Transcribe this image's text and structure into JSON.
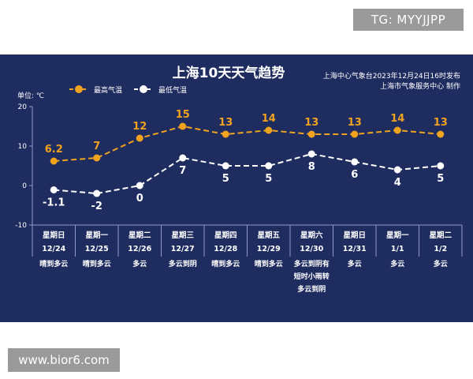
{
  "watermarks": {
    "top": "TG: MYYJJPP",
    "bottom": "www.bior6.com"
  },
  "colors": {
    "panel_bg": "#1f2c60",
    "high": "#f0a31e",
    "low": "#ffffff",
    "text": "#ffffff",
    "axis": "#8f9ac4"
  },
  "chart_data": {
    "type": "line",
    "title": "上海10天天气趋势",
    "source_lines": [
      "上海中心气象台2023年12月24日16时发布",
      "上海市气象服务中心 制作"
    ],
    "unit_label": "单位: ℃",
    "ylim": [
      -10,
      20
    ],
    "yticks": [
      -10,
      0,
      10,
      20
    ],
    "legend_position": "top-left",
    "x": [
      {
        "weekday": "星期日",
        "date": "12/24",
        "weather": [
          "晴到多云"
        ]
      },
      {
        "weekday": "星期一",
        "date": "12/25",
        "weather": [
          "晴到多云"
        ]
      },
      {
        "weekday": "星期二",
        "date": "12/26",
        "weather": [
          "多云"
        ]
      },
      {
        "weekday": "星期三",
        "date": "12/27",
        "weather": [
          "多云到阴"
        ]
      },
      {
        "weekday": "星期四",
        "date": "12/28",
        "weather": [
          "晴到多云"
        ]
      },
      {
        "weekday": "星期五",
        "date": "12/29",
        "weather": [
          "晴到多云"
        ]
      },
      {
        "weekday": "星期六",
        "date": "12/30",
        "weather": [
          "多云到阴有",
          "短时小雨转",
          "多云到阴"
        ]
      },
      {
        "weekday": "星期日",
        "date": "12/31",
        "weather": [
          "多云"
        ]
      },
      {
        "weekday": "星期一",
        "date": "1/1",
        "weather": [
          "多云"
        ]
      },
      {
        "weekday": "星期二",
        "date": "1/2",
        "weather": [
          "多云"
        ]
      }
    ],
    "series": [
      {
        "name": "最高气温",
        "values": [
          6.2,
          7,
          12,
          15,
          13,
          14,
          13,
          13,
          14,
          13
        ],
        "labels": [
          "6.2",
          "7",
          "12",
          "15",
          "13",
          "14",
          "13",
          "13",
          "14",
          "13"
        ]
      },
      {
        "name": "最低气温",
        "values": [
          -1.1,
          -2,
          0,
          7,
          5,
          5,
          8,
          6,
          4,
          5
        ],
        "labels": [
          "-1.1",
          "-2",
          "0",
          "7",
          "5",
          "5",
          "8",
          "6",
          "4",
          "5"
        ]
      }
    ]
  }
}
